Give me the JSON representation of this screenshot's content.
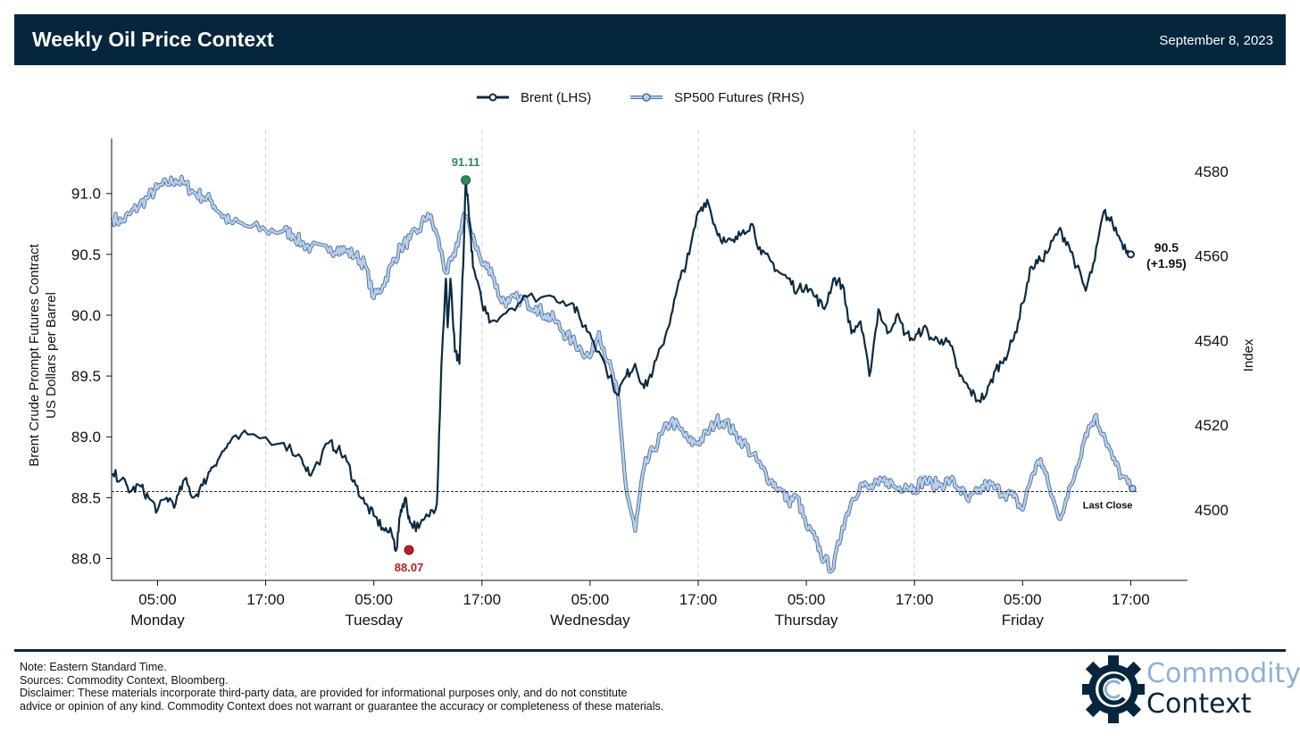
{
  "header": {
    "title": "Weekly Oil Price Context",
    "date": "September 8, 2023"
  },
  "colors": {
    "header_bg": "#05263c",
    "brent": "#0b2a42",
    "sp500_fill": "#b8d0ee",
    "sp500_edge": "#4f6f96",
    "high_marker": "#2e8b57",
    "low_marker": "#b22222",
    "logo_blue": "#8fb0d6"
  },
  "chart_data": {
    "type": "line",
    "legend": [
      "Brent (LHS)",
      "SP500 Futures (RHS)"
    ],
    "legend_position": "top-center",
    "ylabel_left_line1": "Brent Crude Prompt Futures Contract",
    "ylabel_left_line2": "US Dollars per Barrel",
    "ylabel_right": "Index",
    "ylim_left": [
      87.82,
      91.6
    ],
    "ylim_right": [
      4483.3,
      4592
    ],
    "left_ticks": [
      "88.0",
      "88.5",
      "89.0",
      "89.5",
      "90.0",
      "90.5",
      "91.0"
    ],
    "right_ticks": [
      "4500",
      "4520",
      "4540",
      "4560",
      "4580"
    ],
    "x_ticks": [
      {
        "time": "05:00",
        "day": "Monday",
        "h": 5
      },
      {
        "time": "17:00",
        "day": "",
        "h": 17
      },
      {
        "time": "05:00",
        "day": "Tuesday",
        "h": 29
      },
      {
        "time": "17:00",
        "day": "",
        "h": 41
      },
      {
        "time": "05:00",
        "day": "Wednesday",
        "h": 53
      },
      {
        "time": "17:00",
        "day": "",
        "h": 65
      },
      {
        "time": "05:00",
        "day": "Thursday",
        "h": 77
      },
      {
        "time": "17:00",
        "day": "",
        "h": 89
      },
      {
        "time": "05:00",
        "day": "Friday",
        "h": 101
      },
      {
        "time": "17:00",
        "day": "",
        "h": 113
      }
    ],
    "x_range_hours": [
      -0.1,
      119.3
    ],
    "vertical_grid_hours": [
      17,
      41,
      65,
      89
    ],
    "grid": "vertical dashed",
    "last_close": {
      "value": 88.55,
      "label": "Last Close"
    },
    "high": {
      "h": 39.2,
      "value": 91.11,
      "label": "91.11"
    },
    "low": {
      "h": 32.9,
      "value": 88.07,
      "label": "88.07"
    },
    "end_label": {
      "value_label": "90.5",
      "change_label": "(+1.95)"
    },
    "series": [
      {
        "name": "Brent (LHS)",
        "axis": "left",
        "x": [
          0,
          1,
          2,
          3,
          4,
          5,
          6,
          7,
          8,
          9,
          10,
          11,
          12,
          13,
          15,
          19,
          21,
          22,
          24,
          25,
          26,
          27,
          28,
          29,
          30,
          31,
          31.5,
          32,
          32.5,
          33,
          34,
          35,
          36,
          36.5,
          37,
          37.2,
          37.5,
          38,
          38.5,
          39,
          39.2,
          39.5,
          40,
          41,
          42,
          44,
          46,
          49,
          51,
          52,
          53,
          54,
          56,
          57,
          58,
          59,
          60,
          61,
          62,
          63,
          64,
          65,
          66,
          67,
          68,
          69,
          70,
          71,
          72,
          73,
          74,
          75,
          76,
          77,
          78,
          79,
          80,
          81,
          82,
          83,
          84,
          85,
          86,
          87,
          88,
          89,
          90,
          91,
          92,
          93,
          94,
          95,
          96,
          97,
          98,
          99,
          100,
          101,
          102,
          103,
          104,
          105,
          106,
          107,
          108,
          109,
          110,
          111,
          112,
          113
        ],
        "values": [
          88.7,
          88.65,
          88.55,
          88.6,
          88.5,
          88.4,
          88.5,
          88.45,
          88.65,
          88.5,
          88.6,
          88.75,
          88.85,
          88.95,
          89.02,
          88.95,
          88.82,
          88.68,
          88.95,
          88.9,
          88.8,
          88.6,
          88.45,
          88.35,
          88.25,
          88.2,
          88.07,
          88.4,
          88.5,
          88.3,
          88.25,
          88.35,
          88.45,
          89.6,
          90.3,
          89.9,
          90.3,
          89.7,
          89.6,
          90.6,
          91.11,
          90.9,
          90.4,
          90.1,
          89.95,
          90.05,
          90.15,
          90.15,
          90.1,
          89.95,
          89.85,
          89.7,
          89.35,
          89.5,
          89.6,
          89.4,
          89.55,
          89.75,
          90.0,
          90.3,
          90.5,
          90.85,
          90.95,
          90.7,
          90.6,
          90.6,
          90.7,
          90.75,
          90.5,
          90.45,
          90.35,
          90.3,
          90.2,
          90.25,
          90.15,
          90.05,
          90.3,
          90.25,
          89.85,
          89.95,
          89.5,
          90.05,
          89.85,
          90.0,
          89.85,
          89.8,
          89.9,
          89.8,
          89.8,
          89.75,
          89.5,
          89.4,
          89.3,
          89.35,
          89.55,
          89.65,
          89.8,
          90.1,
          90.4,
          90.45,
          90.55,
          90.7,
          90.6,
          90.4,
          90.2,
          90.45,
          90.85,
          90.75,
          90.6,
          90.5
        ]
      },
      {
        "name": "SP500 Futures (RHS)",
        "axis": "right",
        "x": [
          0,
          1,
          2,
          3,
          4,
          5,
          6,
          7,
          8,
          9,
          10,
          11,
          12,
          13,
          15,
          17,
          19,
          20,
          21,
          22,
          24,
          25,
          26,
          27,
          28,
          29,
          30,
          31,
          32,
          33,
          34,
          35,
          36,
          37,
          38,
          39,
          40,
          41,
          42,
          43,
          44,
          45,
          46,
          47,
          48,
          49,
          50,
          51,
          52,
          53,
          54,
          55,
          56,
          57,
          58,
          59,
          60,
          61,
          62,
          63,
          64,
          65,
          66,
          67,
          68,
          69,
          70,
          71,
          72,
          73,
          74,
          75,
          76,
          77,
          78,
          79,
          80,
          81,
          82,
          83,
          84,
          85,
          86,
          87,
          88,
          89,
          90,
          91,
          92,
          93,
          94,
          95,
          96,
          97,
          98,
          99,
          100,
          101,
          102,
          103,
          104,
          105,
          106,
          107,
          108,
          109,
          110,
          111,
          112,
          113
        ],
        "values": [
          4569,
          4568,
          4570,
          4572,
          4574,
          4576,
          4577,
          4578,
          4577,
          4575,
          4574,
          4573,
          4570,
          4568,
          4567,
          4566,
          4566,
          4565,
          4563,
          4562,
          4561,
          4562,
          4561,
          4560,
          4558,
          4550,
          4553,
          4558,
          4562,
          4564,
          4566,
          4570,
          4565,
          4556,
          4560,
          4570,
          4565,
          4558,
          4557,
          4550,
          4549,
          4550,
          4549,
          4548,
          4546,
          4545,
          4542,
          4540,
          4538,
          4536,
          4542,
          4535,
          4528,
          4505,
          4495,
          4510,
          4514,
          4518,
          4521,
          4519,
          4516,
          4516,
          4518,
          4521,
          4521,
          4518,
          4516,
          4513,
          4510,
          4507,
          4505,
          4502,
          4503,
          4496,
          4493,
          4488,
          4486,
          4496,
          4502,
          4506,
          4505,
          4506,
          4507,
          4505,
          4506,
          4505,
          4507,
          4506,
          4506,
          4507,
          4505,
          4502,
          4504,
          4506,
          4505,
          4504,
          4503,
          4500,
          4508,
          4512,
          4505,
          4498,
          4503,
          4510,
          4518,
          4522,
          4518,
          4512,
          4508,
          4505
        ]
      }
    ]
  },
  "footer": {
    "note": "Note: Eastern Standard Time.",
    "sources": "Sources: Commodity Context, Bloomberg.",
    "disclaimer_line1": "Disclaimer: These materials incorporate third-party data, are provided for informational purposes only, and do not constitute",
    "disclaimer_line2": "advice or opinion of any kind. Commodity Context does not warrant or guarantee the accuracy or completeness of these materials."
  },
  "logo": {
    "word1": "Commodity",
    "word2": "Context",
    "icon": "gear-c-logo-icon"
  }
}
